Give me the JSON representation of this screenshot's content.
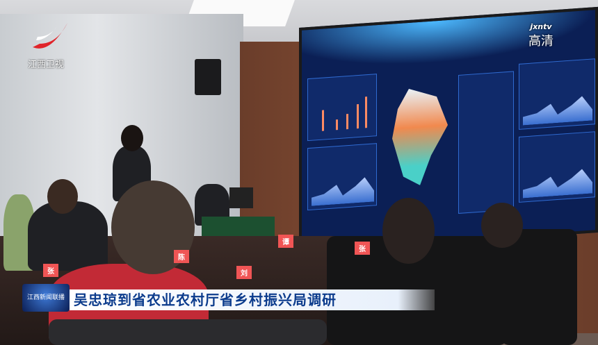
{
  "broadcast": {
    "channel_logo_text": "江西卫视",
    "hd_watermark": {
      "brand": "jxntv",
      "label": "高清"
    },
    "program_badge": "江西新闻联播",
    "caption": "吴忠琼到省农业农村厅省乡村振兴局调研"
  },
  "scene": {
    "name_plates": [
      "张",
      "陈",
      "刘",
      "谭",
      "张"
    ]
  },
  "colors": {
    "caption_text": "#0b3b8c",
    "logo_red": "#e0242a",
    "screen_blue": "#0b1f55",
    "plate_red": "#f05555"
  }
}
